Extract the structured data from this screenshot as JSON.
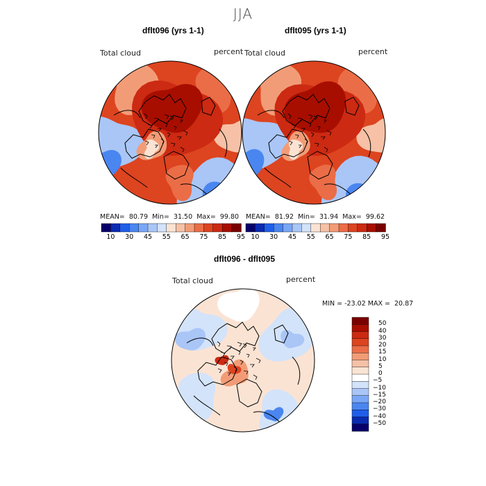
{
  "season": "JJA",
  "panels": [
    {
      "title": "dflt096 (yrs 1-1)",
      "variable": "Total cloud",
      "units": "percent",
      "mean": "80.79",
      "min": "31.50",
      "max": "99.80"
    },
    {
      "title": "dflt095 (yrs 1-1)",
      "variable": "Total cloud",
      "units": "percent",
      "mean": "81.92",
      "min": "31.94",
      "max": "99.62"
    }
  ],
  "diff": {
    "title": "dflt096 - dflt095",
    "variable": "Total cloud",
    "units": "percent",
    "min": "-23.02",
    "max": "20.87"
  },
  "labels": {
    "mean": "MEAN=",
    "min": "Min=",
    "max": "Max="
  },
  "colorbar_top": {
    "ticks": [
      "10",
      "30",
      "45",
      "55",
      "65",
      "75",
      "85",
      "95"
    ],
    "colors": [
      "#08006a",
      "#0a2ab0",
      "#1f5ee8",
      "#4a86f0",
      "#7aa7f5",
      "#a9c6f7",
      "#d3e3fa",
      "#fbe3d3",
      "#f6c1a6",
      "#f29c77",
      "#ea6d47",
      "#dd4420",
      "#cc2a12",
      "#a80e00",
      "#7a0000"
    ]
  },
  "colorbar_diff": {
    "ticks": [
      "50",
      "40",
      "30",
      "20",
      "15",
      "10",
      "5",
      "0",
      "−5",
      "−10",
      "−15",
      "−20",
      "−30",
      "−40",
      "−50"
    ],
    "colors": [
      "#7a0000",
      "#a80e00",
      "#cc2a12",
      "#dd4420",
      "#ea6d47",
      "#f29c77",
      "#f6c1a6",
      "#fbe3d3",
      "#ffffff",
      "#d3e3fa",
      "#a9c6f7",
      "#7aa7f5",
      "#4a86f0",
      "#1f5ee8",
      "#0a2ab0",
      "#08006a"
    ]
  }
}
